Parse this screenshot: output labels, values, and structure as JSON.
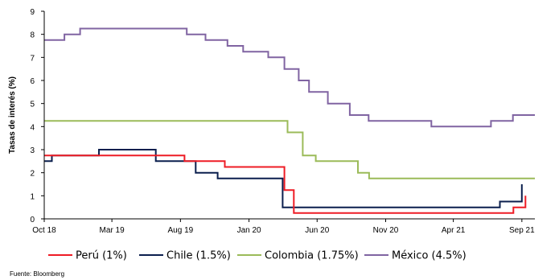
{
  "chart_data": {
    "type": "line",
    "step": true,
    "ylabel": "Tasas de interés (%)",
    "ylim": [
      0,
      9
    ],
    "yticks": [
      "0",
      "1",
      "2",
      "3",
      "4",
      "5",
      "6",
      "7",
      "8",
      "9"
    ],
    "xlim": [
      "2018-10-01",
      "2021-09-30"
    ],
    "xticks": [
      {
        "date": "2018-10-01",
        "label": "Oct 18"
      },
      {
        "date": "2019-03-01",
        "label": "Mar 19"
      },
      {
        "date": "2019-08-01",
        "label": "Aug 19"
      },
      {
        "date": "2020-01-01",
        "label": "Jan 20"
      },
      {
        "date": "2020-06-01",
        "label": "Jun 20"
      },
      {
        "date": "2020-11-01",
        "label": "Nov 20"
      },
      {
        "date": "2021-04-01",
        "label": "Apr 21"
      },
      {
        "date": "2021-09-01",
        "label": "Sep 21"
      }
    ],
    "legend_position": "bottom",
    "source": "Fuente: Bloomberg",
    "series": [
      {
        "name": "Perú (1%)",
        "color": "#ee1c25",
        "points": [
          [
            "2018-10-01",
            2.75
          ],
          [
            "2019-08-10",
            2.5
          ],
          [
            "2019-11-08",
            2.25
          ],
          [
            "2020-02-07",
            2.25
          ],
          [
            "2020-03-20",
            1.25
          ],
          [
            "2020-04-10",
            0.25
          ],
          [
            "2021-08-13",
            0.5
          ],
          [
            "2021-09-09",
            1.0
          ]
        ]
      },
      {
        "name": "Chile (1.5%)",
        "color": "#0b1f4e",
        "points": [
          [
            "2018-10-01",
            2.5
          ],
          [
            "2018-10-18",
            2.75
          ],
          [
            "2019-01-31",
            3.0
          ],
          [
            "2019-06-07",
            2.5
          ],
          [
            "2019-09-04",
            2.0
          ],
          [
            "2019-10-23",
            1.75
          ],
          [
            "2020-03-16",
            0.5
          ],
          [
            "2021-07-14",
            0.75
          ],
          [
            "2021-09-01",
            1.5
          ]
        ]
      },
      {
        "name": "Colombia (1.75%)",
        "color": "#9bbb59",
        "points": [
          [
            "2018-10-01",
            4.25
          ],
          [
            "2020-03-27",
            3.75
          ],
          [
            "2020-04-30",
            2.75
          ],
          [
            "2020-05-29",
            2.5
          ],
          [
            "2020-08-31",
            2.0
          ],
          [
            "2020-09-25",
            1.75
          ],
          [
            "2021-09-30",
            1.75
          ]
        ]
      },
      {
        "name": "México (4.5%)",
        "color": "#8064a2",
        "points": [
          [
            "2018-10-01",
            7.75
          ],
          [
            "2018-11-15",
            8.0
          ],
          [
            "2018-12-20",
            8.25
          ],
          [
            "2019-08-15",
            8.0
          ],
          [
            "2019-09-26",
            7.75
          ],
          [
            "2019-11-14",
            7.5
          ],
          [
            "2019-12-19",
            7.25
          ],
          [
            "2020-02-13",
            7.0
          ],
          [
            "2020-03-20",
            6.5
          ],
          [
            "2020-04-21",
            6.0
          ],
          [
            "2020-05-14",
            5.5
          ],
          [
            "2020-06-25",
            5.0
          ],
          [
            "2020-08-13",
            4.5
          ],
          [
            "2020-09-24",
            4.25
          ],
          [
            "2021-02-11",
            4.0
          ],
          [
            "2021-06-24",
            4.25
          ],
          [
            "2021-08-12",
            4.5
          ],
          [
            "2021-09-30",
            4.5
          ]
        ]
      }
    ]
  }
}
